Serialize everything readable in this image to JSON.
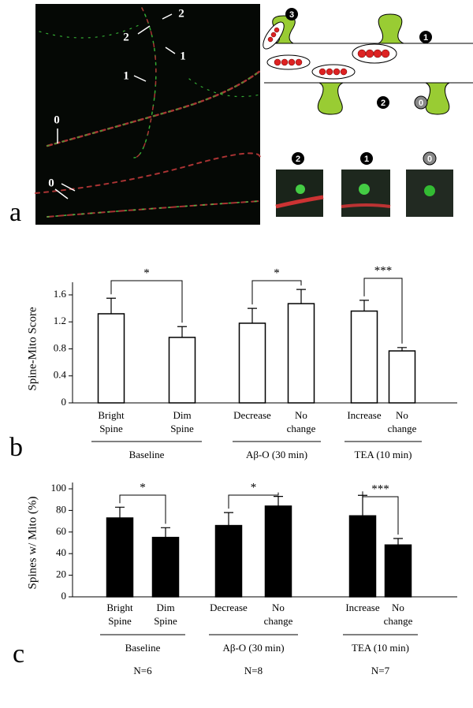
{
  "panel_labels": [
    "a",
    "b",
    "c"
  ],
  "image_annotations": [
    "2",
    "2",
    "1",
    "1",
    "0",
    "0"
  ],
  "diagram_labels": [
    "3",
    "1",
    "2",
    "0"
  ],
  "inset_labels": [
    "2",
    "1",
    "0"
  ],
  "chart_data": [
    {
      "type": "bar",
      "y_label": "Spine-Mito Score",
      "categories": [
        [
          "Bright",
          "Spine"
        ],
        [
          "Dim",
          "Spine"
        ],
        [
          "Decrease"
        ],
        [
          "No",
          "change"
        ],
        [
          "Increase"
        ],
        [
          "No",
          "change"
        ]
      ],
      "groups": [
        "Baseline",
        "Aβ-O (30 min)",
        "TEA (10 min)"
      ],
      "significance": [
        "*",
        "*",
        "***"
      ],
      "series": [
        {
          "color": "#ffffff",
          "values": [
            1.32,
            0.97,
            1.18,
            1.47,
            1.36,
            0.77
          ],
          "errors": [
            0.23,
            0.16,
            0.22,
            0.21,
            0.16,
            0.05
          ]
        }
      ],
      "ylim": [
        0,
        1.6
      ],
      "yticks": [
        0,
        0.4,
        0.8,
        1.2,
        1.6
      ]
    },
    {
      "type": "bar",
      "y_label": "Spines w/ Mito (%)",
      "categories": [
        [
          "Bright",
          "Spine"
        ],
        [
          "Dim",
          "Spine"
        ],
        [
          "Decrease"
        ],
        [
          "No",
          "change"
        ],
        [
          "Increase"
        ],
        [
          "No",
          "change"
        ]
      ],
      "groups": [
        "Baseline",
        "Aβ-O (30 min)",
        "TEA (10 min)"
      ],
      "n_labels": [
        "N=6",
        "N=8",
        "N=7"
      ],
      "significance": [
        "*",
        "*",
        "***"
      ],
      "series": [
        {
          "color": "#000000",
          "values": [
            73,
            55,
            66,
            84,
            75,
            48
          ],
          "errors": [
            10,
            9,
            12,
            9,
            19,
            6
          ]
        }
      ],
      "ylim": [
        0,
        100
      ],
      "yticks": [
        0,
        20,
        40,
        60,
        80,
        100
      ]
    }
  ]
}
